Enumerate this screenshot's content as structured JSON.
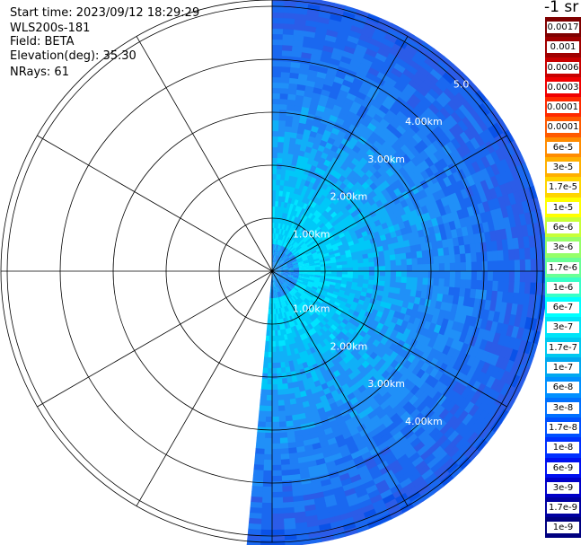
{
  "header": {
    "start_time": "Start time: 2023/09/12 18:29:29",
    "instrument": "WLS200s-181",
    "field": "Field: BETA",
    "elevation": "Elevation(deg): 35.30",
    "nrays": "NRays: 61"
  },
  "colorbar": {
    "title": "-1 sr",
    "levels": [
      {
        "label": "0.0017",
        "color": "#7f0000"
      },
      {
        "label": "0.001",
        "color": "#a00000"
      },
      {
        "label": "0.0006",
        "color": "#c80000"
      },
      {
        "label": "0.0003",
        "color": "#f00000"
      },
      {
        "label": "0.00017",
        "color": "#ff2a00"
      },
      {
        "label": "0.0001",
        "color": "#ff5a00"
      },
      {
        "label": "6e-5",
        "color": "#ff8c00"
      },
      {
        "label": "3e-5",
        "color": "#ffb000"
      },
      {
        "label": "1.7e-5",
        "color": "#ffd500"
      },
      {
        "label": "1e-5",
        "color": "#ffff00"
      },
      {
        "label": "6e-6",
        "color": "#c8ff37"
      },
      {
        "label": "3e-6",
        "color": "#96ff69"
      },
      {
        "label": "1.7e-6",
        "color": "#69ff96"
      },
      {
        "label": "1e-6",
        "color": "#37ffc8"
      },
      {
        "label": "6e-7",
        "color": "#00ffff"
      },
      {
        "label": "3e-7",
        "color": "#00e4f8"
      },
      {
        "label": "1.7e-7",
        "color": "#00c8f0"
      },
      {
        "label": "1e-7",
        "color": "#00a8f0"
      },
      {
        "label": "6e-8",
        "color": "#0090ff"
      },
      {
        "label": "3e-8",
        "color": "#0070ff"
      },
      {
        "label": "1.7e-8",
        "color": "#0050ff"
      },
      {
        "label": "1e-8",
        "color": "#0030ff"
      },
      {
        "label": "6e-9",
        "color": "#0010f0"
      },
      {
        "label": "3e-9",
        "color": "#0000c8"
      },
      {
        "label": "1.7e-9",
        "color": "#0000a0"
      },
      {
        "label": "1e-9",
        "color": "#00007f"
      }
    ]
  },
  "chart_data": {
    "type": "heatmap",
    "projection": "polar (PPI)",
    "field": "BETA",
    "range_unit": "km",
    "range_rings": [
      1,
      2,
      3,
      4,
      5
    ],
    "ring_labels_upper": [
      "1.00km",
      "2.00km",
      "3.00km",
      "4.00km",
      "5.0"
    ],
    "ring_labels_lower": [
      "1.00km",
      "2.00km",
      "3.00km",
      "4.00km"
    ],
    "spokes_deg": [
      0,
      30,
      60,
      90,
      120,
      150,
      180,
      210,
      240,
      270,
      300,
      330
    ],
    "azimuth_coverage_deg": [
      0,
      185
    ],
    "max_range_km": 5.2,
    "nrays": 61,
    "color_scale": "log",
    "value_range": [
      1e-09,
      0.0017
    ]
  }
}
